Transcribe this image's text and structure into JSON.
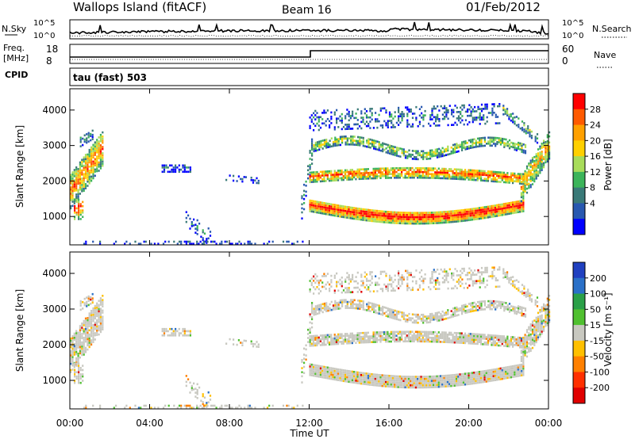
{
  "header": {
    "station": "Wallops Island (fitACF)",
    "beam": "Beam 16",
    "date": "01/Feb/2012"
  },
  "side_labels": {
    "nsky": "N.Sky",
    "nsearch": "N.Search",
    "freq_line1": "Freq.",
    "freq_line2": "[MHz]",
    "nave": "Nave",
    "cpid": "CPID",
    "cpid_value": "tau (fast) 503"
  },
  "noise_panel": {
    "ticks_left": [
      "10^5",
      "10^0"
    ],
    "ticks_right": [
      "10^5",
      "10^0"
    ]
  },
  "freq_panel": {
    "ticks_left": [
      "18",
      "8"
    ],
    "ticks_right": [
      "60",
      "0"
    ]
  },
  "chart_data": [
    {
      "type": "heatmap",
      "ylabel": "Slant Range [km]",
      "ylim": [
        200,
        4600
      ],
      "yticks": [
        "1000",
        "2000",
        "3000",
        "4000"
      ],
      "xlim": [
        "00:00",
        "24:00"
      ],
      "colorbar": {
        "label": "Power [dB]",
        "ticks": [
          "28",
          "24",
          "20",
          "16",
          "12",
          "8",
          "4"
        ],
        "colors": [
          "#ff0000",
          "#ff5a00",
          "#ffa000",
          "#ffd000",
          "#a8dc5a",
          "#3cb45a",
          "#3a7a78",
          "#2858b0",
          "#0000ff"
        ]
      }
    },
    {
      "type": "heatmap",
      "ylabel": "Slant Range [km]",
      "ylim": [
        200,
        4600
      ],
      "yticks": [
        "1000",
        "2000",
        "3000",
        "4000"
      ],
      "xlabel": "Time UT",
      "xticks": [
        "00:00",
        "04:00",
        "08:00",
        "12:00",
        "16:00",
        "20:00",
        "00:00"
      ],
      "colorbar": {
        "label": "Velocity [m s⁻¹]",
        "ticks": [
          "200",
          "100",
          "50",
          "15",
          "-15",
          "-50",
          "-100",
          "-200"
        ],
        "colors": [
          "#2040c0",
          "#2a70c8",
          "#2aa048",
          "#50c030",
          "#c8c8c0",
          "#ffc000",
          "#ff8000",
          "#ff3000",
          "#e00000"
        ]
      }
    }
  ]
}
